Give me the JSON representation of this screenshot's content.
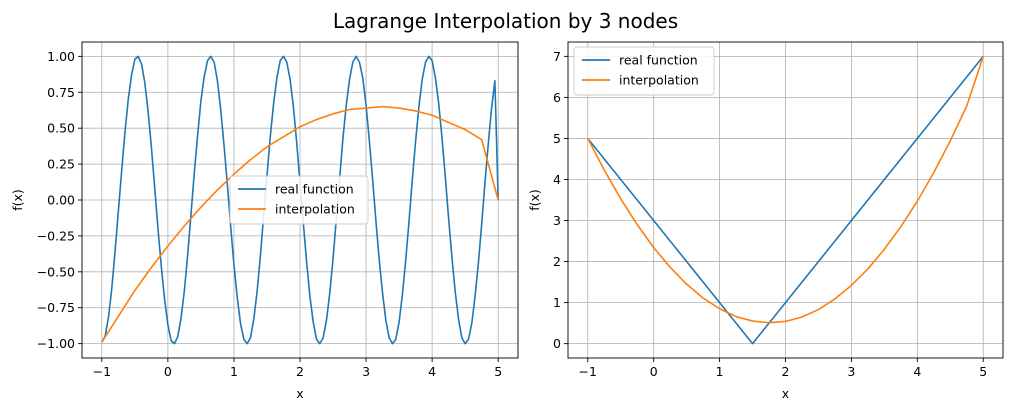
{
  "figure": {
    "title": "Lagrange Interpolation by 3 nodes"
  },
  "chart_data": [
    {
      "type": "line",
      "xlabel": "x",
      "ylabel": "f(x)",
      "xlim": [
        -1.3,
        5.3
      ],
      "ylim": [
        -1.1,
        1.1
      ],
      "xticks": [
        -1,
        0,
        1,
        2,
        3,
        4,
        5
      ],
      "yticks": [
        -1.0,
        -0.75,
        -0.5,
        -0.25,
        0.0,
        0.25,
        0.5,
        0.75,
        1.0
      ],
      "ytick_labels": [
        "−1.00",
        "−0.75",
        "−0.50",
        "−0.25",
        "0.00",
        "0.25",
        "0.50",
        "0.75",
        "1.00"
      ],
      "grid": true,
      "legend_position": "center-right",
      "series": [
        {
          "name": "real function",
          "color": "#1f77b4",
          "x": [
            -1.0,
            -0.95,
            -0.9,
            -0.85,
            -0.8,
            -0.75,
            -0.7,
            -0.65,
            -0.6,
            -0.55,
            -0.5,
            -0.45,
            -0.4,
            -0.35,
            -0.3,
            -0.25,
            -0.2,
            -0.15,
            -0.1,
            -0.05,
            0.0,
            0.05,
            0.1,
            0.15,
            0.2,
            0.25,
            0.3,
            0.35,
            0.4,
            0.45,
            0.5,
            0.55,
            0.6,
            0.65,
            0.7,
            0.75,
            0.8,
            0.85,
            0.9,
            0.95,
            1.0,
            1.05,
            1.1,
            1.15,
            1.2,
            1.25,
            1.3,
            1.35,
            1.4,
            1.45,
            1.5,
            1.55,
            1.6,
            1.65,
            1.7,
            1.75,
            1.8,
            1.85,
            1.9,
            1.95,
            2.0,
            2.05,
            2.1,
            2.15,
            2.2,
            2.25,
            2.3,
            2.35,
            2.4,
            2.45,
            2.5,
            2.55,
            2.6,
            2.65,
            2.7,
            2.75,
            2.8,
            2.85,
            2.9,
            2.95,
            3.0,
            3.05,
            3.1,
            3.15,
            3.2,
            3.25,
            3.3,
            3.35,
            3.4,
            3.45,
            3.5,
            3.55,
            3.6,
            3.65,
            3.7,
            3.75,
            3.8,
            3.85,
            3.9,
            3.95,
            4.0,
            4.05,
            4.1,
            4.15,
            4.2,
            4.25,
            4.3,
            4.35,
            4.4,
            4.45,
            4.5,
            4.55,
            4.6,
            4.65,
            4.7,
            4.75,
            4.8,
            4.85,
            4.9,
            4.95,
            5.0
          ],
          "y": [
            -0.99,
            -0.95,
            -0.82,
            -0.62,
            -0.36,
            -0.08,
            0.2,
            0.47,
            0.7,
            0.87,
            0.98,
            1.0,
            0.95,
            0.82,
            0.62,
            0.37,
            0.09,
            -0.2,
            -0.46,
            -0.69,
            -0.87,
            -0.98,
            -1.0,
            -0.95,
            -0.82,
            -0.63,
            -0.38,
            -0.1,
            0.19,
            0.45,
            0.69,
            0.86,
            0.97,
            1.0,
            0.96,
            0.83,
            0.63,
            0.38,
            0.11,
            -0.18,
            -0.45,
            -0.68,
            -0.86,
            -0.97,
            -1.0,
            -0.96,
            -0.83,
            -0.64,
            -0.39,
            -0.11,
            0.17,
            0.44,
            0.67,
            0.85,
            0.97,
            1.0,
            0.96,
            0.84,
            0.65,
            0.4,
            0.12,
            -0.16,
            -0.43,
            -0.67,
            -0.85,
            -0.97,
            -1.0,
            -0.96,
            -0.84,
            -0.65,
            -0.41,
            -0.13,
            0.15,
            0.43,
            0.66,
            0.84,
            0.96,
            1.0,
            0.96,
            0.85,
            0.66,
            0.41,
            0.14,
            -0.15,
            -0.42,
            -0.65,
            -0.84,
            -0.96,
            -1.0,
            -0.97,
            -0.85,
            -0.66,
            -0.42,
            -0.15,
            0.14,
            0.41,
            0.65,
            0.84,
            0.96,
            1.0,
            0.97,
            0.85,
            0.67,
            0.43,
            0.16,
            -0.13,
            -0.4,
            -0.64,
            -0.83,
            -0.96,
            -1.0,
            -0.97,
            -0.86,
            -0.67,
            -0.44,
            -0.17,
            0.12,
            0.39,
            0.64,
            0.83,
            0.0
          ]
        },
        {
          "name": "interpolation",
          "color": "#ff7f0e",
          "x": [
            -1.0,
            -0.75,
            -0.5,
            -0.25,
            0.0,
            0.25,
            0.5,
            0.75,
            1.0,
            1.25,
            1.5,
            1.75,
            2.0,
            2.25,
            2.5,
            2.75,
            3.0,
            3.25,
            3.5,
            3.75,
            4.0,
            4.25,
            4.5,
            4.75,
            5.0
          ],
          "y": [
            -0.99,
            -0.81,
            -0.63,
            -0.47,
            -0.32,
            -0.18,
            -0.05,
            0.07,
            0.18,
            0.28,
            0.37,
            0.44,
            0.51,
            0.56,
            0.6,
            0.63,
            0.64,
            0.65,
            0.64,
            0.62,
            0.59,
            0.54,
            0.49,
            0.42,
            0.0
          ]
        }
      ]
    },
    {
      "type": "line",
      "xlabel": "x",
      "ylabel": "f(x)",
      "xlim": [
        -1.3,
        5.3
      ],
      "ylim": [
        -0.35,
        7.35
      ],
      "xticks": [
        -1,
        0,
        1,
        2,
        3,
        4,
        5
      ],
      "yticks": [
        0,
        1,
        2,
        3,
        4,
        5,
        6,
        7
      ],
      "ytick_labels": [
        "0",
        "1",
        "2",
        "3",
        "4",
        "5",
        "6",
        "7"
      ],
      "grid": true,
      "legend_position": "top-left",
      "series": [
        {
          "name": "real function",
          "color": "#1f77b4",
          "x": [
            -1.0,
            1.5,
            5.0
          ],
          "y": [
            5.0,
            0.0,
            7.0
          ]
        },
        {
          "name": "interpolation",
          "color": "#ff7f0e",
          "x": [
            -1.0,
            -0.75,
            -0.5,
            -0.25,
            0.0,
            0.25,
            0.5,
            0.75,
            1.0,
            1.25,
            1.5,
            1.75,
            2.0,
            2.25,
            2.5,
            2.75,
            3.0,
            3.25,
            3.5,
            3.75,
            4.0,
            4.25,
            4.5,
            4.75,
            5.0
          ],
          "y": [
            5.0,
            4.23,
            3.53,
            2.9,
            2.34,
            1.86,
            1.45,
            1.11,
            0.85,
            0.66,
            0.55,
            0.51,
            0.54,
            0.65,
            0.83,
            1.09,
            1.42,
            1.82,
            2.3,
            2.85,
            3.47,
            4.17,
            4.94,
            5.79,
            7.0
          ]
        }
      ]
    }
  ]
}
